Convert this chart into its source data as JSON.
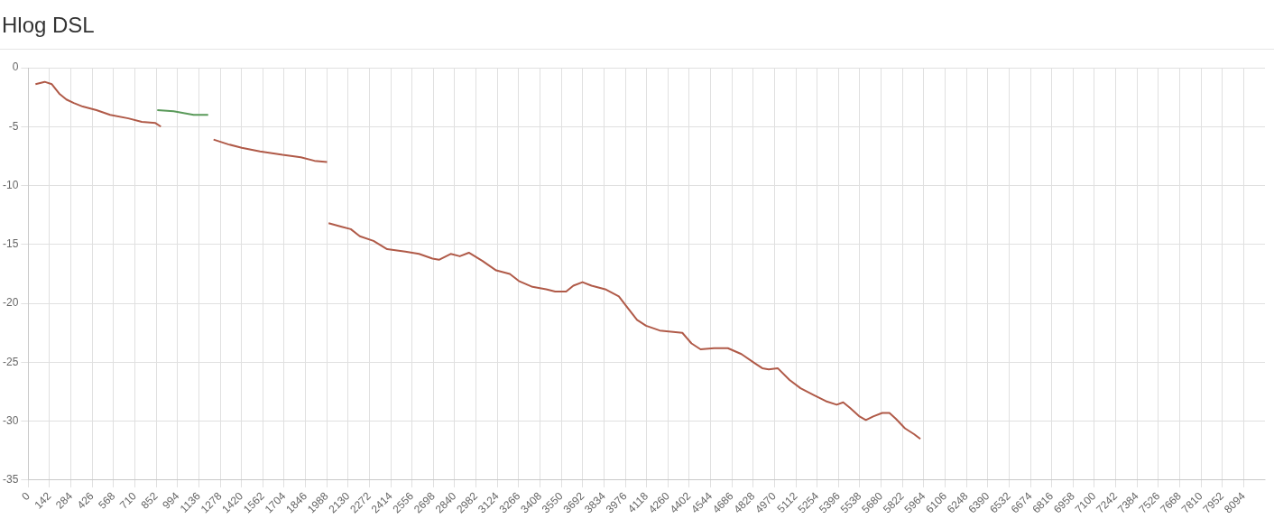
{
  "chart_data": {
    "type": "line",
    "title": "Hlog DSL",
    "xlim": [
      0,
      8236
    ],
    "xticks": [
      0,
      142,
      284,
      426,
      568,
      710,
      852,
      994,
      1136,
      1278,
      1420,
      1562,
      1704,
      1846,
      1988,
      2130,
      2272,
      2414,
      2556,
      2698,
      2840,
      2982,
      3124,
      3266,
      3408,
      3550,
      3692,
      3834,
      3976,
      4118,
      4260,
      4402,
      4544,
      4686,
      4828,
      4970,
      5112,
      5254,
      5396,
      5538,
      5680,
      5822,
      5964,
      6106,
      6248,
      6390,
      6532,
      6674,
      6816,
      6958,
      7100,
      7242,
      7384,
      7526,
      7668,
      7810,
      7952,
      8094
    ],
    "ylim": [
      -35,
      0
    ],
    "yticks": [
      0,
      -5,
      -10,
      -15,
      -20,
      -25,
      -30,
      -35
    ],
    "grid": true,
    "legend": false,
    "marker": "none",
    "line_style": "solid",
    "series": [
      {
        "color": "#b05a48",
        "x": [
          48,
          109,
          157,
          206,
          254,
          303,
          363,
          454,
          545,
          666,
          756,
          847,
          883,
          1050,
          1234,
          1331,
          1422,
          1543,
          1694,
          1815,
          1906,
          1990,
          1995,
          2000,
          2087,
          2148,
          2208,
          2299,
          2390,
          2511,
          2602,
          2692,
          2735,
          2813,
          2874,
          2934,
          3025,
          3116,
          3207,
          3267,
          3358,
          3449,
          3509,
          3582,
          3630,
          3691,
          3751,
          3842,
          3933,
          3993,
          4054,
          4114,
          4205,
          4356,
          4417,
          4477,
          4568,
          4659,
          4749,
          4840,
          4888,
          4931,
          4991,
          5070,
          5143,
          5233,
          5312,
          5384,
          5427,
          5475,
          5536,
          5578,
          5627,
          5687,
          5735,
          5778,
          5838,
          5899,
          5941
        ],
        "values": [
          -1.4,
          -1.2,
          -1.4,
          -2.2,
          -2.7,
          -3.0,
          -3.3,
          -3.6,
          -4.0,
          -4.3,
          -4.6,
          -4.7,
          -5.0,
          null,
          -6.1,
          -6.5,
          -6.8,
          -7.1,
          -7.4,
          -7.6,
          -7.9,
          -8.0,
          null,
          -13.2,
          -13.5,
          -13.7,
          -14.3,
          -14.7,
          -15.4,
          -15.6,
          -15.8,
          -16.2,
          -16.3,
          -15.8,
          -16.0,
          -15.7,
          -16.4,
          -17.2,
          -17.5,
          -18.1,
          -18.6,
          -18.8,
          -19.0,
          -19.0,
          -18.5,
          -18.2,
          -18.5,
          -18.8,
          -19.4,
          -20.4,
          -21.4,
          -21.9,
          -22.3,
          -22.5,
          -23.4,
          -23.9,
          -23.8,
          -23.8,
          -24.3,
          -25.1,
          -25.5,
          -25.6,
          -25.5,
          -26.5,
          -27.2,
          -27.8,
          -28.3,
          -28.6,
          -28.4,
          -28.9,
          -29.6,
          -29.9,
          -29.6,
          -29.3,
          -29.3,
          -29.8,
          -30.6,
          -31.1,
          -31.5
        ]
      },
      {
        "color": "#5a9a5a",
        "x": [
          859,
          968,
          1059,
          1101,
          1198
        ],
        "values": [
          -3.6,
          -3.7,
          -3.9,
          -4.0,
          -4.0
        ]
      }
    ]
  }
}
